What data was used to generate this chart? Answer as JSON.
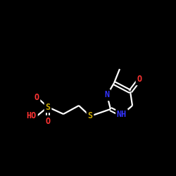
{
  "background_color": "#000000",
  "bond_color": "#ffffff",
  "atom_colors": {
    "O": "#ff3333",
    "S": "#ccaa00",
    "N": "#3333ff",
    "C": "#ffffff",
    "H": "#ffffff"
  },
  "figsize": [
    2.5,
    2.5
  ],
  "dpi": 100
}
